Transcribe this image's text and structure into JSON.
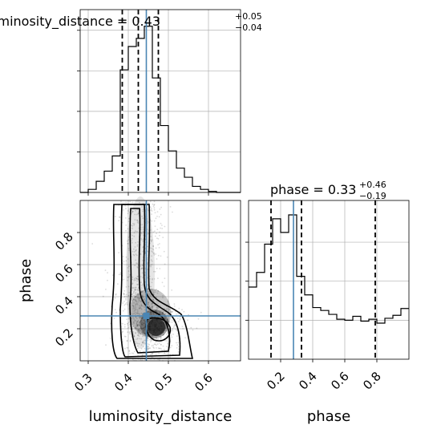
{
  "chart_data": [
    {
      "type": "histogram",
      "panel": "luminosity_distance-marginal",
      "title": {
        "param": "luminosity_distance",
        "median": "0.43",
        "plus": "+0.05",
        "minus": "−0.04"
      },
      "xlim": [
        0.28,
        0.68
      ],
      "bin_edges": [
        0.28,
        0.3,
        0.32,
        0.34,
        0.36,
        0.38,
        0.4,
        0.42,
        0.44,
        0.46,
        0.48,
        0.5,
        0.52,
        0.54,
        0.56,
        0.58,
        0.6,
        0.62,
        0.64,
        0.66,
        0.68
      ],
      "counts": [
        0,
        3,
        11,
        21,
        36,
        121,
        144,
        152,
        164,
        113,
        66,
        41,
        24,
        15,
        6,
        3,
        1,
        0,
        0,
        0
      ],
      "quantile_lines": [
        0.385,
        0.425,
        0.475
      ],
      "truth": 0.445,
      "grid": true
    },
    {
      "type": "histogram",
      "panel": "phase-marginal",
      "title": {
        "param": "phase",
        "median": "0.33",
        "plus": "+0.46",
        "minus": "−0.19"
      },
      "xlim": [
        0.0,
        1.0
      ],
      "bin_edges": [
        0.0,
        0.05,
        0.1,
        0.15,
        0.2,
        0.25,
        0.3,
        0.35,
        0.4,
        0.45,
        0.5,
        0.55,
        0.6,
        0.65,
        0.7,
        0.75,
        0.8,
        0.85,
        0.9,
        0.95,
        1.0
      ],
      "counts": [
        74,
        89,
        118,
        144,
        130,
        148,
        85,
        66,
        53,
        50,
        46,
        41,
        40,
        44,
        39,
        41,
        37,
        42,
        45,
        52
      ],
      "quantile_lines": [
        0.14,
        0.33,
        0.79
      ],
      "truth": 0.28,
      "xticks": [
        "0.2",
        "0.4",
        "0.6",
        "0.8"
      ],
      "xlabel": "phase",
      "grid": true
    },
    {
      "type": "scatter-density-contour",
      "panel": "joint",
      "x_param": "luminosity_distance",
      "y_param": "phase",
      "xlim": [
        0.28,
        0.68
      ],
      "ylim": [
        0.0,
        1.0
      ],
      "xticks": [
        "0.3",
        "0.4",
        "0.5",
        "0.6"
      ],
      "yticks": [
        "0.2",
        "0.4",
        "0.6",
        "0.8"
      ],
      "xlabel": "luminosity_distance",
      "ylabel": "phase",
      "truth": {
        "x": 0.445,
        "y": 0.28
      },
      "density_peak": {
        "x": 0.47,
        "y": 0.21
      },
      "grid": true
    }
  ],
  "colors": {
    "truth": "#4a86b4",
    "hist": "#000000",
    "grid": "#b0b0b0",
    "points": "#000000"
  }
}
